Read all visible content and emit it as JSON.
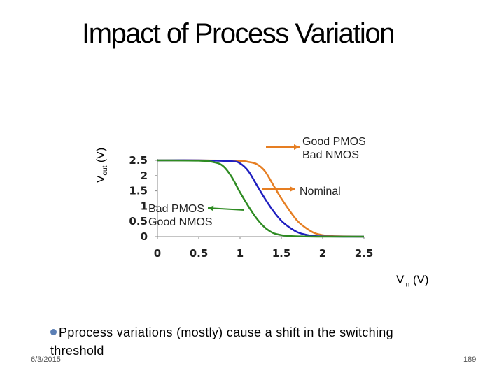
{
  "slide": {
    "title": "Impact of Process Variation",
    "bullet": "Pprocess variations (mostly) cause a shift in the switching threshold",
    "date": "6/3/2015",
    "page_number": "189"
  },
  "chart_data": {
    "type": "line",
    "title": "",
    "ylabel_main": "V",
    "ylabel_sub": "out",
    "ylabel_unit": " (V)",
    "xlabel_main": "V",
    "xlabel_sub": "in",
    "xlabel_unit": " (V)",
    "xlim": [
      0,
      2.5
    ],
    "ylim": [
      0,
      2.5
    ],
    "x_ticks": [
      0,
      0.5,
      1,
      1.5,
      2,
      2.5
    ],
    "x_tick_labels": [
      "0",
      "0.5",
      "1",
      "1.5",
      "2",
      "2.5"
    ],
    "y_ticks": [
      0,
      0.5,
      1,
      1.5,
      2,
      2.5
    ],
    "y_tick_labels": [
      "0",
      "0.5",
      "1",
      "1.5",
      "2",
      "2.5"
    ],
    "grid": false,
    "series": [
      {
        "name": "Good PMOS / Bad NMOS",
        "color": "#e67e22",
        "x": [
          0,
          0.5,
          1.0,
          1.1,
          1.2,
          1.3,
          1.4,
          1.5,
          1.6,
          1.7,
          1.8,
          1.9,
          2.0,
          2.1,
          2.25,
          2.5
        ],
        "y": [
          2.5,
          2.5,
          2.48,
          2.45,
          2.38,
          2.15,
          1.7,
          1.25,
          0.85,
          0.5,
          0.28,
          0.12,
          0.05,
          0.02,
          0.01,
          0.0
        ]
      },
      {
        "name": "Nominal",
        "color": "#1f1fc0",
        "x": [
          0,
          0.5,
          0.9,
          1.0,
          1.1,
          1.2,
          1.3,
          1.4,
          1.5,
          1.6,
          1.7,
          1.8,
          1.9,
          2.0,
          2.25,
          2.5
        ],
        "y": [
          2.5,
          2.5,
          2.47,
          2.4,
          2.15,
          1.7,
          1.25,
          0.85,
          0.52,
          0.3,
          0.14,
          0.06,
          0.02,
          0.01,
          0.0,
          0.0
        ]
      },
      {
        "name": "Bad PMOS / Good NMOS",
        "color": "#2e8b22",
        "x": [
          0,
          0.5,
          0.7,
          0.8,
          0.9,
          1.0,
          1.1,
          1.2,
          1.3,
          1.4,
          1.5,
          1.6,
          1.7,
          2.0,
          2.5
        ],
        "y": [
          2.5,
          2.49,
          2.43,
          2.3,
          1.95,
          1.45,
          1.0,
          0.6,
          0.3,
          0.12,
          0.05,
          0.02,
          0.01,
          0.0,
          0.0
        ]
      }
    ],
    "annotations": [
      {
        "lines": [
          "Good PMOS",
          "Bad NMOS"
        ],
        "color": "#e67e22"
      },
      {
        "lines": [
          "Nominal"
        ],
        "color": "#e67e22"
      },
      {
        "lines": [
          "Bad PMOS",
          "Good NMOS"
        ],
        "color": "#2e8b22"
      }
    ]
  }
}
